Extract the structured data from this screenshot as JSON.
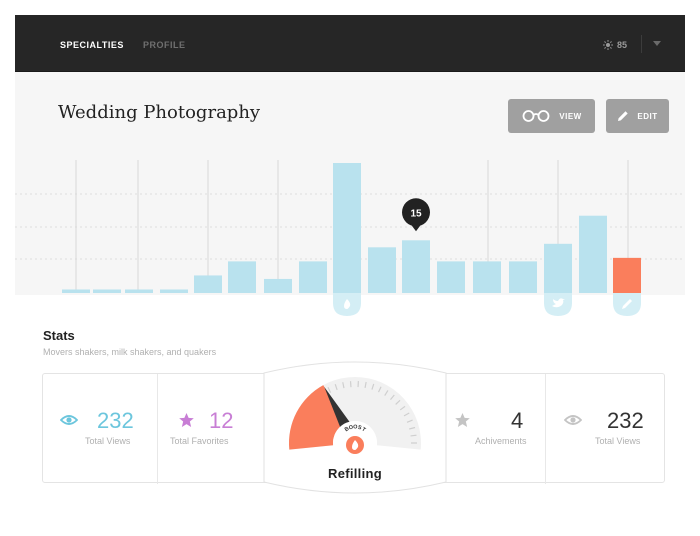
{
  "topbar": {
    "tabs": [
      {
        "label": "SPECIALTIES",
        "active": true
      },
      {
        "label": "PROFILE",
        "active": false
      }
    ],
    "points": "85",
    "points_icon": "sun-icon"
  },
  "header": {
    "title": "Wedding Photography",
    "view_label": "VIEW",
    "edit_label": "EDIT",
    "view_icon": "glasses-icon",
    "edit_icon": "pencil-icon"
  },
  "chart_data": {
    "type": "bar",
    "series": [
      {
        "values": [
          1,
          1,
          1,
          1,
          5,
          9,
          4,
          9,
          37,
          13,
          15,
          9,
          9,
          9,
          14,
          22,
          10
        ]
      }
    ],
    "highlighted_index": 16,
    "highlight_color": "#fa7e5c",
    "bar_color": "#b9e2ee",
    "tooltip": {
      "index": 10,
      "value": "15"
    },
    "bar_markers": [
      {
        "index": 8,
        "icon": "flame-icon"
      },
      {
        "index": 14,
        "icon": "twitter-bird-icon"
      },
      {
        "index": 16,
        "icon": "pencil-icon"
      }
    ],
    "grid": true
  },
  "stats": {
    "title": "Stats",
    "subtitle": "Movers shakers, milk shakers, and quakers",
    "items": [
      {
        "value": "232",
        "label": "Total Views",
        "icon": "eye-icon",
        "color": "#6cc6dd"
      },
      {
        "value": "12",
        "label": "Total Favorites",
        "icon": "star-icon",
        "color": "#c87ed5"
      },
      {
        "value": "4",
        "label": "Achivements",
        "icon": "star-icon",
        "color": "#333333"
      },
      {
        "value": "232",
        "label": "Total Views",
        "icon": "eye-icon",
        "color": "#333333"
      }
    ],
    "gauge": {
      "label": "Refilling",
      "boost_label": "BOOST",
      "level": 0.35,
      "color": "#fa7e5c"
    }
  }
}
